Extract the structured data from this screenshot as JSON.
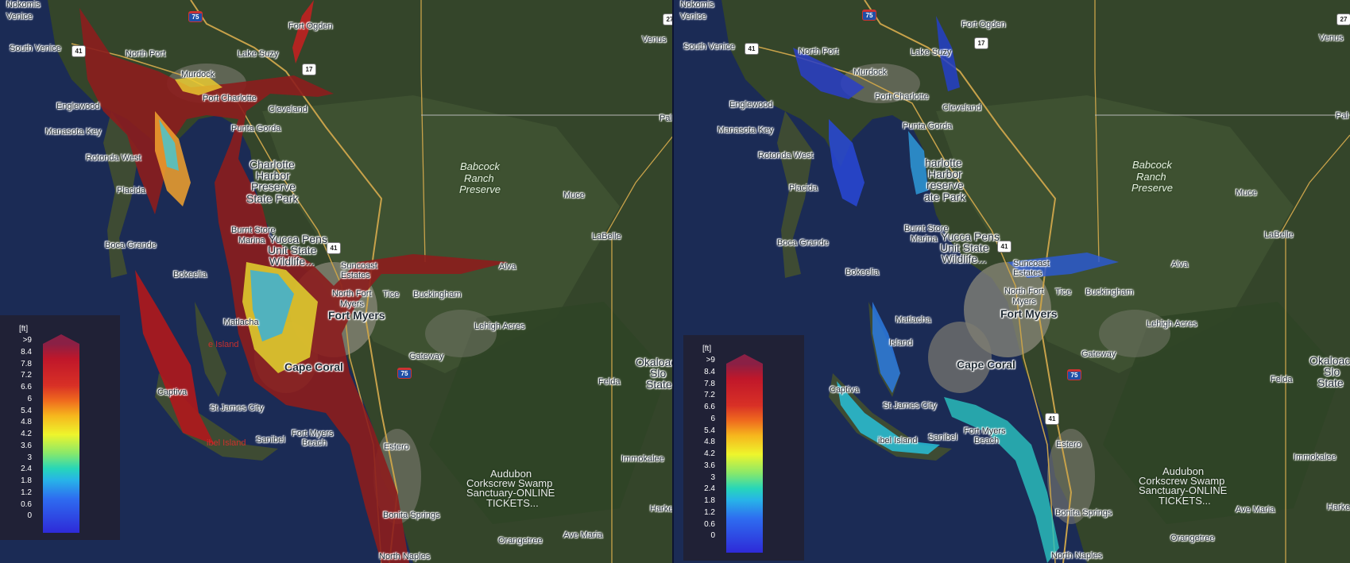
{
  "panels": [
    {
      "id": "left",
      "labels": [
        "Nokomis",
        "Venice",
        "South Venice",
        "North Port",
        "Murdock",
        "Lake Suzy",
        "Fort Ogden",
        "Port Charlotte",
        "Cleveland",
        "Englewood",
        "Manasota Key",
        "Punta Gorda",
        "Rotonda West",
        "Placida",
        "Boca Grande",
        "Burnt Store",
        "Marina",
        "Suncoast",
        "Estates",
        "Alva",
        "Bokeelia",
        "North Fort",
        "Myers",
        "Tice",
        "Buckingham",
        "Matlacha",
        "Lehigh Acres",
        "Gateway",
        "Captiva",
        "St James City",
        "Sanibel",
        "Fort Myers",
        "Beach",
        "Estero",
        "Bonita Springs",
        "North Naples",
        "Orangetree",
        "Ave Maria",
        "Immokalee",
        "Felda",
        "LaBelle",
        "Muce",
        "Venus",
        "Harke",
        "Pal",
        "Okaloac",
        "Slo",
        "State"
      ],
      "city_labels": [
        "Fort Myers",
        "Cape Coral"
      ],
      "park_labels": [
        "Babcock",
        "Ranch",
        "Preserve"
      ],
      "poi_labels": [
        "Audubon",
        "Corkscrew Swamp",
        "Sanctuary-ONLINE",
        "TICKETS..."
      ],
      "refuge_labels": [
        "Charlotte",
        "Harbor",
        "Preserve",
        "State Park",
        "Yucca Pens",
        "Unit State",
        "Wildlife..."
      ],
      "flood_labels": [
        "e Island",
        "ibel Island"
      ]
    },
    {
      "id": "right",
      "labels": [
        "Nokomis",
        "Venice",
        "South Venice",
        "North Port",
        "Murdock",
        "Lake Suzy",
        "Fort Ogden",
        "Port Charlotte",
        "Cleveland",
        "Englewood",
        "Manasota Key",
        "Punta Gorda",
        "Rotonda West",
        "Placida",
        "Boca Grande",
        "Burnt Store",
        "Marina",
        "Suncoast",
        "Estates",
        "Alva",
        "Bokeelia",
        "North Fort",
        "Myers",
        "Tice",
        "Buckingham",
        "Matlacha",
        "Lehigh Acres",
        "Gateway",
        "Captiva",
        "St James City",
        "Sanibel",
        "Fort Myers",
        "Beach",
        "Estero",
        "Bonita Springs",
        "North Naples",
        "Orangetree",
        "Ave Maria",
        "Immokalee",
        "Felda",
        "LaBelle",
        "Muce",
        "Venus",
        "Harke",
        "Pal",
        "Okaloac",
        "Slo",
        "State"
      ],
      "city_labels": [
        "Fort Myers",
        "Cape Coral"
      ],
      "park_labels": [
        "Babcock",
        "Ranch",
        "Preserve"
      ],
      "poi_labels": [
        "Audubon",
        "Corkscrew Swamp",
        "Sanctuary-ONLINE",
        "TICKETS..."
      ],
      "refuge_labels": [
        "harlotte",
        "Harbor",
        "reserve",
        "ate Park",
        "Yucca Pens",
        "Unit State",
        "Wildlife..."
      ],
      "flood_labels": [
        "Island",
        "ibel Island"
      ]
    }
  ],
  "shields": [
    "75",
    "41",
    "17",
    "27",
    "75",
    "41",
    "17",
    "27"
  ],
  "legend": {
    "unit": "[ft]",
    "ticks": [
      ">9",
      "8.4",
      "7.8",
      "7.2",
      "6.6",
      "6",
      "5.4",
      "4.8",
      "4.2",
      "3.6",
      "3",
      "2.4",
      "1.8",
      "1.2",
      "0.6",
      "0"
    ],
    "scale_max_ft": 9,
    "scale_min_ft": 0,
    "colors": [
      "#8a2045",
      "#c0172a",
      "#ef6a1e",
      "#eef52c",
      "#27d6b9",
      "#2e6cf0",
      "#2e2ad8"
    ]
  },
  "colors": {
    "water": "#1b2b55",
    "land_dark": "#2c3b23",
    "land_mid": "#425433",
    "urban": "#8c8a7e",
    "road": "#c8a24a"
  }
}
